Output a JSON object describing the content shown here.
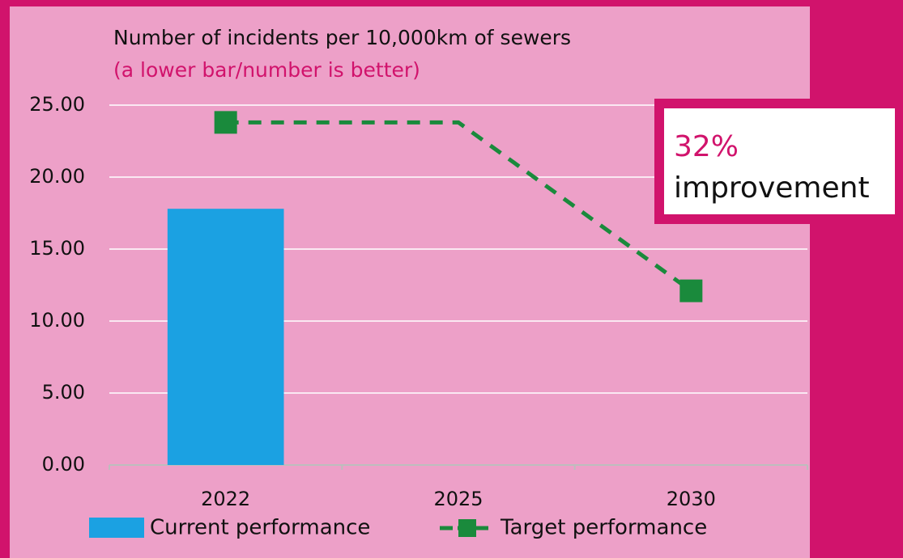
{
  "chart_data": {
    "type": "bar",
    "title": "Number of incidents per 10,000km of sewers",
    "subtitle": "(a lower bar/number is better)",
    "categories": [
      "2022",
      "2025",
      "2030"
    ],
    "series": [
      {
        "name": "Current performance",
        "type": "bar",
        "color": "#1ba1e2",
        "values": [
          17.8,
          null,
          null
        ]
      },
      {
        "name": "Target performance",
        "type": "line",
        "color": "#1a8a3c",
        "values": [
          23.8,
          23.8,
          12.1
        ],
        "markers": [
          true,
          false,
          true
        ]
      }
    ],
    "ylim": [
      0,
      25
    ],
    "yticks": [
      {
        "value": 0,
        "label": "0.00"
      },
      {
        "value": 5,
        "label": "5.00"
      },
      {
        "value": 10,
        "label": "10.00"
      },
      {
        "value": 15,
        "label": "15.00"
      },
      {
        "value": 20,
        "label": "20.00"
      },
      {
        "value": 25,
        "label": "25.00"
      }
    ],
    "grid": true,
    "annotation": {
      "value": "32%",
      "text": "improvement"
    }
  }
}
